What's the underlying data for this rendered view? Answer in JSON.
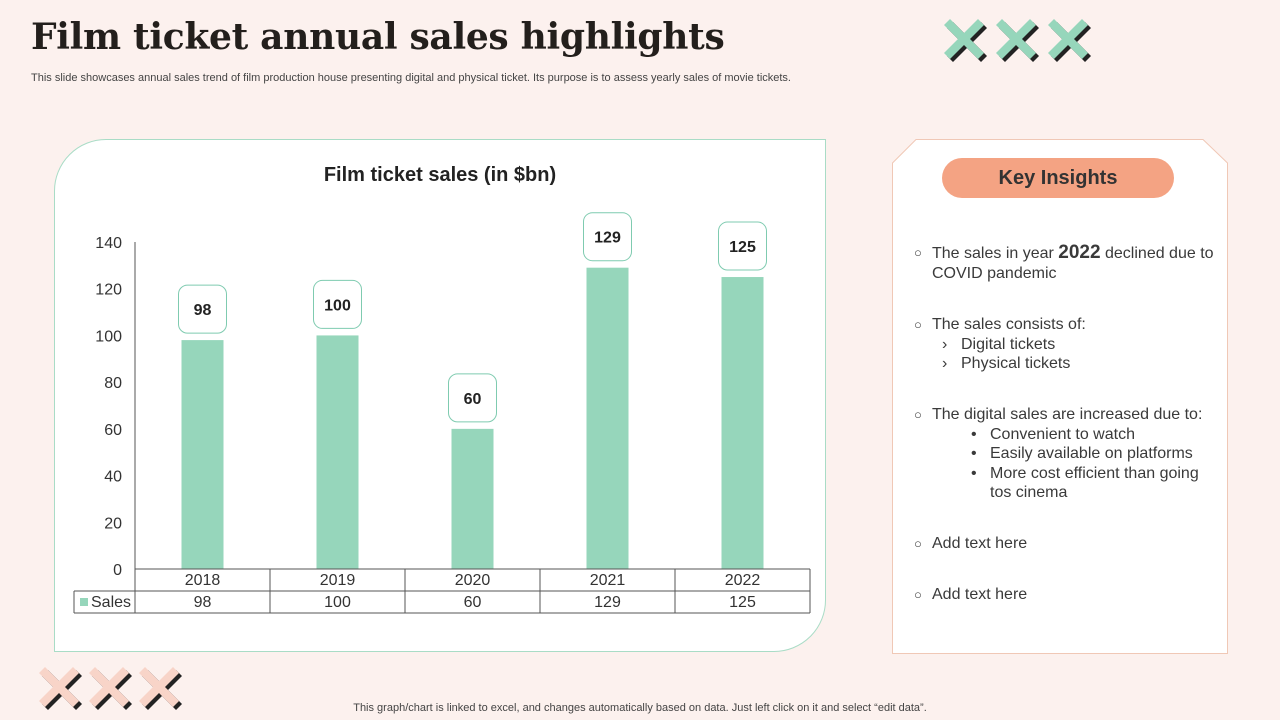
{
  "title": "Film ticket annual sales highlights",
  "subtitle": "This slide showcases annual sales trend of film production house presenting digital and physical ticket. Its purpose is to assess yearly sales of movie tickets.",
  "colors": {
    "background": "#fcf1ee",
    "bar": "#96d6bb",
    "accent": "#f4a383",
    "deco_green": "#96d6bb",
    "deco_peach": "#f8d4c8"
  },
  "chart_data": {
    "type": "bar",
    "title": "Film ticket sales (in $bn)",
    "categories": [
      "2018",
      "2019",
      "2020",
      "2021",
      "2022"
    ],
    "series": [
      {
        "name": "Sales",
        "values": [
          98,
          100,
          60,
          129,
          125
        ]
      }
    ],
    "ylim": [
      0,
      140
    ],
    "yticks": [
      0,
      20,
      40,
      60,
      80,
      100,
      120,
      140
    ],
    "data_table": true,
    "legend": "data-table"
  },
  "insights": {
    "heading": "Key Insights",
    "i1": {
      "pre": "The sales in year ",
      "year": "2022",
      "post": " declined due to COVID pandemic"
    },
    "i2": {
      "text": "The sales consists of:",
      "subs": [
        "Digital tickets",
        "Physical tickets"
      ]
    },
    "i3": {
      "text": "The digital sales are increased due to:",
      "subs": [
        "Convenient to watch",
        "Easily available on platforms",
        "More cost efficient than going tos cinema"
      ]
    },
    "i4": {
      "text": "Add text here"
    },
    "i5": {
      "text": "Add text here"
    }
  },
  "footer": "This graph/chart is linked to excel,  and changes automatically based on data. Just left click on it and select “edit data”."
}
